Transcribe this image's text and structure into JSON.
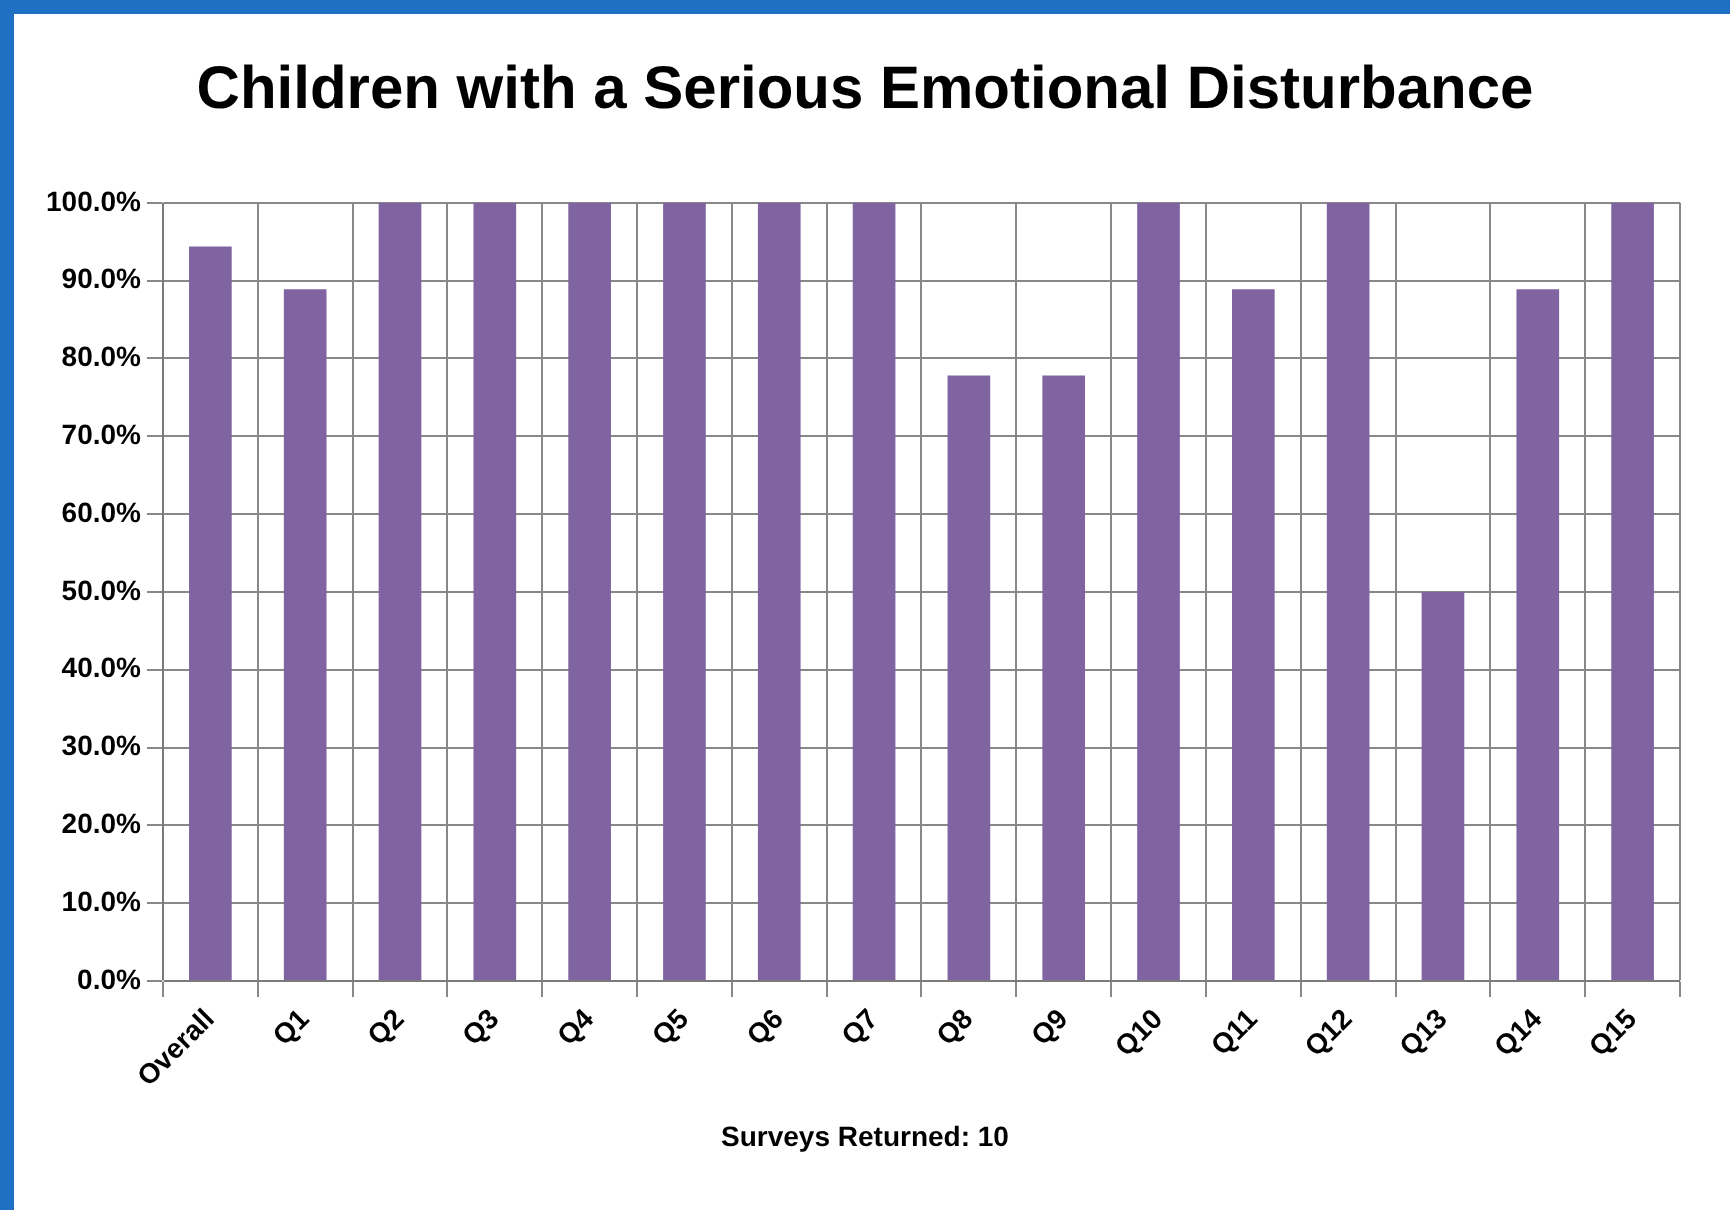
{
  "chart_data": {
    "type": "bar",
    "title": "Children with a Serious Emotional Disturbance",
    "categories": [
      "Overall",
      "Q1",
      "Q2",
      "Q3",
      "Q4",
      "Q5",
      "Q6",
      "Q7",
      "Q8",
      "Q9",
      "Q10",
      "Q11",
      "Q12",
      "Q13",
      "Q14",
      "Q15"
    ],
    "values": [
      94.4,
      88.9,
      100,
      100,
      100,
      100,
      100,
      100,
      77.8,
      77.8,
      100,
      88.9,
      100,
      50,
      88.9,
      100
    ],
    "color": "#8064a2",
    "ylim": [
      0,
      100
    ],
    "yticks": [
      {
        "value": 0,
        "label": "0.0%"
      },
      {
        "value": 10,
        "label": "10.0%"
      },
      {
        "value": 20,
        "label": "20.0%"
      },
      {
        "value": 30,
        "label": "30.0%"
      },
      {
        "value": 40,
        "label": "40.0%"
      },
      {
        "value": 50,
        "label": "50.0%"
      },
      {
        "value": 60,
        "label": "60.0%"
      },
      {
        "value": 70,
        "label": "70.0%"
      },
      {
        "value": 80,
        "label": "80.0%"
      },
      {
        "value": 90,
        "label": "90.0%"
      },
      {
        "value": 100,
        "label": "100.0%"
      }
    ],
    "grid": true,
    "annotations": [
      "Surveys Returned: 10"
    ]
  }
}
